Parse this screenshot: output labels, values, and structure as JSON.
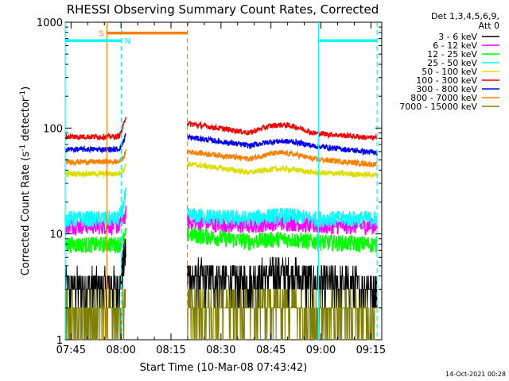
{
  "chart_data": {
    "type": "line",
    "title": "RHESSI Observing Summary Count Rates, Corrected",
    "ylabel_main": "Corrected Count Rate (s",
    "ylabel_sup": "-1",
    "ylabel_mid": " detector",
    "ylabel_end": ")",
    "xlabel": "Start Time (10-Mar-08 07:43:42)",
    "y_scale": "log",
    "ylim": [
      1,
      1000
    ],
    "y_ticks": [
      {
        "value": 1,
        "label": "1"
      },
      {
        "value": 10,
        "label": "10"
      },
      {
        "value": 100,
        "label": "100"
      },
      {
        "value": 1000,
        "label": "1000"
      }
    ],
    "x_ticks": [
      {
        "value": 105,
        "label": "07:45"
      },
      {
        "value": 1005,
        "label": "08:00"
      },
      {
        "value": 1905,
        "label": "08:15"
      },
      {
        "value": 2805,
        "label": "08:30"
      },
      {
        "value": 3705,
        "label": "08:45"
      },
      {
        "value": 4605,
        "label": "09:00"
      },
      {
        "value": 5505,
        "label": "09:15"
      }
    ],
    "xlim_seconds": [
      0,
      5700
    ],
    "legend_header": [
      "Det 1,3,4,5,6,9,",
      "Att 0"
    ],
    "series": [
      {
        "name": "3 - 6 keV",
        "color": "#000000",
        "pre": 3.2,
        "flare": 8,
        "post": [
          4.0,
          3.5,
          4.3,
          3.2
        ]
      },
      {
        "name": "6 - 12 keV",
        "color": "#ff00ff",
        "pre": 12,
        "flare": 16,
        "post": [
          13,
          12,
          13,
          12
        ]
      },
      {
        "name": "12 - 25 keV",
        "color": "#00ff00",
        "pre": 8,
        "flare": 10,
        "post": [
          10,
          8.5,
          9,
          8
        ]
      },
      {
        "name": "25 - 50 keV",
        "color": "#00ffff",
        "pre": 14,
        "flare": 25,
        "post": [
          15,
          14,
          15,
          14
        ]
      },
      {
        "name": "50 - 100 keV",
        "color": "#dddd00",
        "pre": 37,
        "flare": 45,
        "post": [
          46,
          38,
          41,
          36
        ]
      },
      {
        "name": "100 - 300 keV",
        "color": "#ff0000",
        "pre": 83,
        "flare": 135,
        "post": [
          110,
          90,
          107,
          80
        ]
      },
      {
        "name": "300 - 800 keV",
        "color": "#0000ff",
        "pre": 63,
        "flare": 90,
        "post": [
          82,
          68,
          75,
          58
        ]
      },
      {
        "name": "800 - 7000 keV",
        "color": "#ff8000",
        "pre": 48,
        "flare": 60,
        "post": [
          60,
          51,
          58,
          45
        ]
      },
      {
        "name": "7000 - 15000 keV",
        "color": "#808000",
        "pre": 1.8,
        "flare": 2.5,
        "post": [
          2.0,
          1.9,
          2.2,
          1.8
        ]
      }
    ],
    "gaps": [
      {
        "start": 1095,
        "end": 2200
      }
    ],
    "markers": [
      {
        "label": "S",
        "color": "#ff8000",
        "x_start": 750,
        "x_end": 2200,
        "level": 790,
        "dashed": true
      },
      {
        "label": "N",
        "color": "#00ffff",
        "x_start": 1010,
        "x_end": 4560,
        "level": 670,
        "dashed": true
      }
    ],
    "saa_bars": [
      {
        "color": "#00ffff",
        "x_start": 0,
        "x_end": 1010,
        "level": 670
      },
      {
        "color": "#ff8000",
        "x_start": 750,
        "x_end": 2200,
        "level": 790
      },
      {
        "color": "#00ffff",
        "x_start": 4560,
        "x_end": 5615,
        "level": 670
      }
    ],
    "cyan_solid_lines": [
      0,
      4560
    ],
    "cyan_dashed_lines": [
      1010,
      5615
    ],
    "orange_solid_lines": [
      750
    ],
    "orange_dashed_lines": [
      2200
    ]
  },
  "timestamp": "14-Oct-2021 00:28"
}
